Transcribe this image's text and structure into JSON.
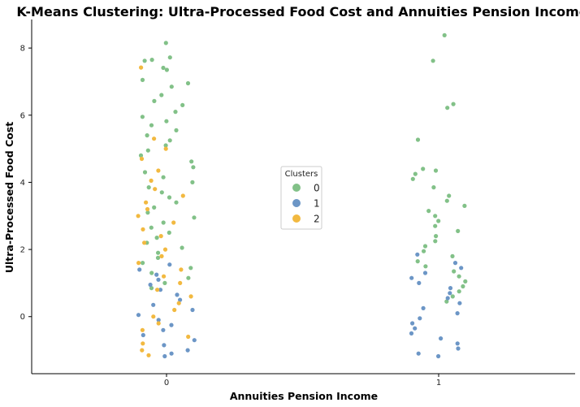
{
  "chart_data": {
    "type": "scatter",
    "title": "K-Means Clustering: Ultra-Processed Food Cost and Annuities Pension Income",
    "xlabel": "Annuities Pension Income",
    "ylabel": "Ultra-Processed Food Cost",
    "x_categories": [
      "0",
      "1"
    ],
    "y_ticks": [
      "0",
      "2",
      "4",
      "6",
      "8"
    ],
    "ylim": [
      -1.7,
      8.85
    ],
    "grid": false,
    "legend": {
      "title": "Clusters",
      "placement": "center",
      "entries": [
        {
          "label": "0",
          "color": "#82c188"
        },
        {
          "label": "1",
          "color": "#6c96c6"
        },
        {
          "label": "2",
          "color": "#f2b940"
        }
      ]
    },
    "series": [
      {
        "name": "0",
        "color": "#82c188",
        "points": [
          [
            0,
            8.15
          ],
          [
            0,
            7.72
          ],
          [
            0,
            7.62
          ],
          [
            0,
            7.65
          ],
          [
            0,
            7.41
          ],
          [
            0,
            7.35
          ],
          [
            0,
            7.05
          ],
          [
            0,
            6.95
          ],
          [
            0,
            6.85
          ],
          [
            0,
            6.6
          ],
          [
            0,
            6.42
          ],
          [
            0,
            6.3
          ],
          [
            0,
            6.1
          ],
          [
            0,
            5.95
          ],
          [
            0,
            5.82
          ],
          [
            0,
            5.7
          ],
          [
            0,
            5.55
          ],
          [
            0,
            5.4
          ],
          [
            0,
            5.25
          ],
          [
            0,
            5.1
          ],
          [
            0,
            4.95
          ],
          [
            0,
            4.8
          ],
          [
            0,
            4.62
          ],
          [
            0,
            4.45
          ],
          [
            0,
            4.3
          ],
          [
            0,
            4.15
          ],
          [
            0,
            4.0
          ],
          [
            0,
            3.85
          ],
          [
            0,
            3.7
          ],
          [
            0,
            3.55
          ],
          [
            0,
            3.4
          ],
          [
            0,
            3.25
          ],
          [
            0,
            3.1
          ],
          [
            0,
            2.95
          ],
          [
            0,
            2.8
          ],
          [
            0,
            2.65
          ],
          [
            0,
            2.5
          ],
          [
            0,
            2.35
          ],
          [
            0,
            2.2
          ],
          [
            0,
            2.05
          ],
          [
            0,
            1.9
          ],
          [
            0,
            1.75
          ],
          [
            0,
            1.6
          ],
          [
            0,
            1.45
          ],
          [
            0,
            1.3
          ],
          [
            0,
            1.15
          ],
          [
            0,
            1.0
          ],
          [
            0,
            0.85
          ],
          [
            1,
            8.38
          ],
          [
            1,
            7.62
          ],
          [
            1,
            6.33
          ],
          [
            1,
            6.22
          ],
          [
            1,
            5.27
          ],
          [
            1,
            4.4
          ],
          [
            1,
            4.35
          ],
          [
            1,
            4.25
          ],
          [
            1,
            4.1
          ],
          [
            1,
            3.85
          ],
          [
            1,
            3.6
          ],
          [
            1,
            3.45
          ],
          [
            1,
            3.3
          ],
          [
            1,
            3.15
          ],
          [
            1,
            3.0
          ],
          [
            1,
            2.85
          ],
          [
            1,
            2.7
          ],
          [
            1,
            2.55
          ],
          [
            1,
            2.4
          ],
          [
            1,
            2.25
          ],
          [
            1,
            2.1
          ],
          [
            1,
            1.95
          ],
          [
            1,
            1.8
          ],
          [
            1,
            1.65
          ],
          [
            1,
            1.5
          ],
          [
            1,
            1.35
          ],
          [
            1,
            1.2
          ],
          [
            1,
            1.05
          ],
          [
            1,
            0.9
          ],
          [
            1,
            0.75
          ],
          [
            1,
            0.6
          ],
          [
            1,
            0.45
          ]
        ]
      },
      {
        "name": "1",
        "color": "#6c96c6",
        "points": [
          [
            0,
            1.55
          ],
          [
            0,
            1.4
          ],
          [
            0,
            1.25
          ],
          [
            0,
            1.1
          ],
          [
            0,
            0.95
          ],
          [
            0,
            0.8
          ],
          [
            0,
            0.65
          ],
          [
            0,
            0.5
          ],
          [
            0,
            0.35
          ],
          [
            0,
            0.2
          ],
          [
            0,
            0.05
          ],
          [
            0,
            -0.1
          ],
          [
            0,
            -0.25
          ],
          [
            0,
            -0.4
          ],
          [
            0,
            -0.55
          ],
          [
            0,
            -0.7
          ],
          [
            0,
            -0.85
          ],
          [
            0,
            -1.0
          ],
          [
            0,
            -1.1
          ],
          [
            0,
            -1.18
          ],
          [
            1,
            1.85
          ],
          [
            1,
            1.6
          ],
          [
            1,
            1.45
          ],
          [
            1,
            1.3
          ],
          [
            1,
            1.15
          ],
          [
            1,
            1.0
          ],
          [
            1,
            0.85
          ],
          [
            1,
            0.7
          ],
          [
            1,
            0.55
          ],
          [
            1,
            0.4
          ],
          [
            1,
            0.25
          ],
          [
            1,
            0.1
          ],
          [
            1,
            -0.05
          ],
          [
            1,
            -0.2
          ],
          [
            1,
            -0.35
          ],
          [
            1,
            -0.5
          ],
          [
            1,
            -0.65
          ],
          [
            1,
            -0.8
          ],
          [
            1,
            -0.95
          ],
          [
            1,
            -1.1
          ],
          [
            1,
            -1.18
          ]
        ]
      },
      {
        "name": "2",
        "color": "#f2b940",
        "points": [
          [
            0,
            7.42
          ],
          [
            0,
            5.3
          ],
          [
            0,
            5.0
          ],
          [
            0,
            4.7
          ],
          [
            0,
            4.35
          ],
          [
            0,
            4.05
          ],
          [
            0,
            3.8
          ],
          [
            0,
            3.6
          ],
          [
            0,
            3.4
          ],
          [
            0,
            3.2
          ],
          [
            0,
            3.0
          ],
          [
            0,
            2.8
          ],
          [
            0,
            2.6
          ],
          [
            0,
            2.4
          ],
          [
            0,
            2.2
          ],
          [
            0,
            2.0
          ],
          [
            0,
            1.8
          ],
          [
            0,
            1.6
          ],
          [
            0,
            1.4
          ],
          [
            0,
            1.2
          ],
          [
            0,
            1.0
          ],
          [
            0,
            0.8
          ],
          [
            0,
            0.6
          ],
          [
            0,
            0.4
          ],
          [
            0,
            0.2
          ],
          [
            0,
            0.0
          ],
          [
            0,
            -0.2
          ],
          [
            0,
            -0.4
          ],
          [
            0,
            -0.6
          ],
          [
            0,
            -0.8
          ],
          [
            0,
            -1.0
          ],
          [
            0,
            -1.15
          ]
        ]
      }
    ]
  }
}
